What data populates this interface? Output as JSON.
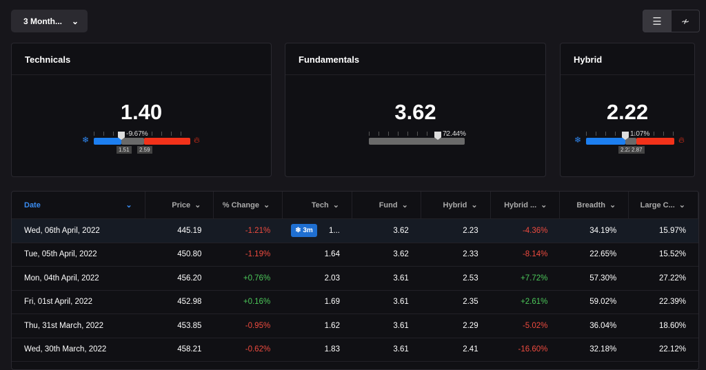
{
  "range_select": "3 Month...",
  "view_buttons": [
    {
      "icon": "list-icon",
      "glyph": "☰"
    },
    {
      "icon": "chart-icon",
      "glyph": "≁"
    }
  ],
  "cards": [
    {
      "title": "Technicals",
      "value": "1.40",
      "pct": "-9.67%",
      "low": "1.51",
      "high": "2.59",
      "marker_pct": 28
    },
    {
      "title": "Fundamentals",
      "value": "3.62",
      "pct": "72.44%",
      "marker_pct": 72
    },
    {
      "title": "Hybrid",
      "value": "2.22",
      "pct": "1.07%",
      "low": "2.22",
      "high": "2.87",
      "marker_pct": 44
    }
  ],
  "table": {
    "headers": [
      "Date",
      "Price",
      "% Change",
      "Tech",
      "Fund",
      "Hybrid",
      "Hybrid ...",
      "Breadth",
      "Large C..."
    ],
    "badge": "3m",
    "rows": [
      [
        "Wed, 06th April, 2022",
        "445.19",
        "-1.21%",
        "1...",
        "3.62",
        "2.23",
        "-4.36%",
        "34.19%",
        "15.97%"
      ],
      [
        "Tue, 05th April, 2022",
        "450.80",
        "-1.19%",
        "1.64",
        "3.62",
        "2.33",
        "-8.14%",
        "22.65%",
        "15.52%"
      ],
      [
        "Mon, 04th April, 2022",
        "456.20",
        "+0.76%",
        "2.03",
        "3.61",
        "2.53",
        "+7.72%",
        "57.30%",
        "27.22%"
      ],
      [
        "Fri, 01st April, 2022",
        "452.98",
        "+0.16%",
        "1.69",
        "3.61",
        "2.35",
        "+2.61%",
        "59.02%",
        "22.39%"
      ],
      [
        "Thu, 31st March, 2022",
        "453.85",
        "-0.95%",
        "1.62",
        "3.61",
        "2.29",
        "-5.02%",
        "36.04%",
        "18.60%"
      ],
      [
        "Wed, 30th March, 2022",
        "458.21",
        "-0.62%",
        "1.83",
        "3.61",
        "2.41",
        "-16.60%",
        "32.18%",
        "22.12%"
      ]
    ]
  }
}
